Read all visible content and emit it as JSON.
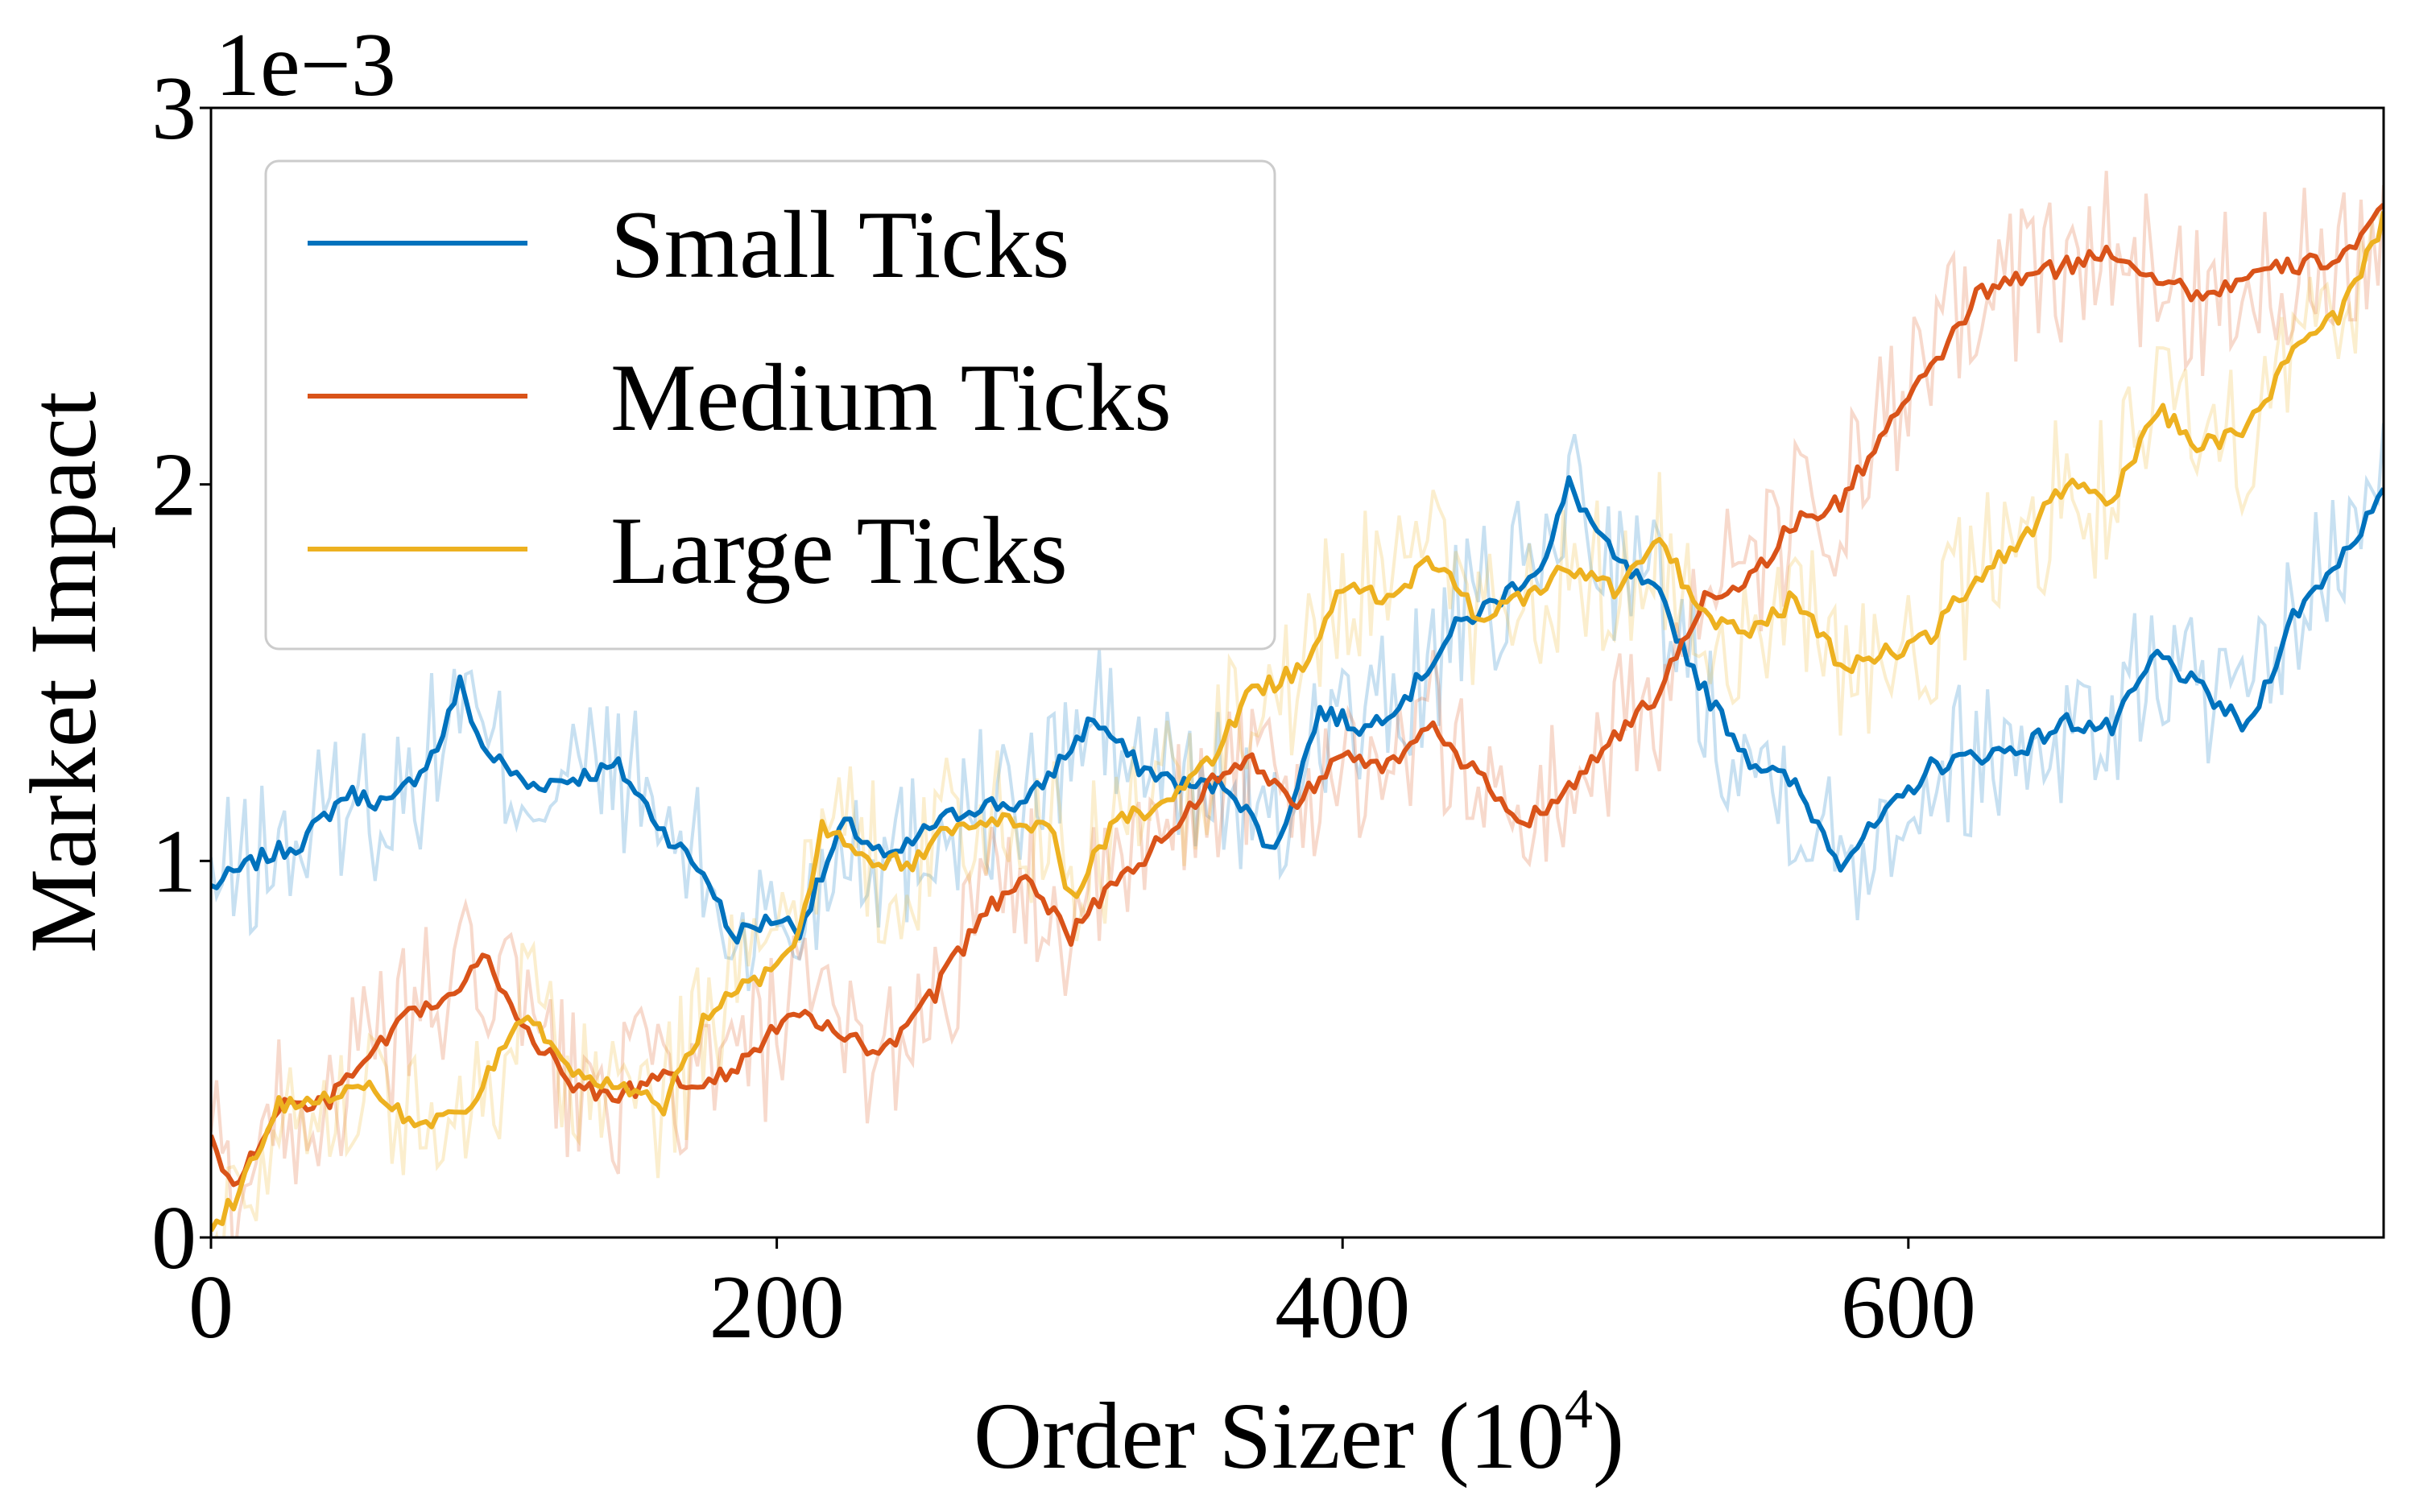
{
  "chart_data": {
    "type": "line",
    "title": "",
    "xlabel": "Order Sizer (10",
    "xlabel_superscript": "4",
    "xlabel_close": ")",
    "ylabel": "Market Impact",
    "y_offset_label": "1e−3",
    "xlim": [
      0,
      768
    ],
    "ylim": [
      0,
      3
    ],
    "xticks": [
      0,
      200,
      400,
      600
    ],
    "xtick_labels": [
      "0",
      "200",
      "400",
      "600"
    ],
    "yticks": [
      0,
      1,
      2,
      3
    ],
    "ytick_labels": [
      "0",
      "1",
      "2",
      "3"
    ],
    "grid": false,
    "legend_placement": "upper-left",
    "series": [
      {
        "name": "Small Ticks",
        "color": "#0072BD",
        "noise_amplitude": 0.22,
        "points": [
          [
            0,
            0.93
          ],
          [
            16,
            1.0
          ],
          [
            32,
            1.05
          ],
          [
            48,
            1.18
          ],
          [
            64,
            1.15
          ],
          [
            80,
            1.3
          ],
          [
            88,
            1.47
          ],
          [
            96,
            1.3
          ],
          [
            112,
            1.2
          ],
          [
            128,
            1.22
          ],
          [
            144,
            1.25
          ],
          [
            160,
            1.08
          ],
          [
            176,
            0.95
          ],
          [
            184,
            0.8
          ],
          [
            200,
            0.85
          ],
          [
            208,
            0.82
          ],
          [
            224,
            1.1
          ],
          [
            240,
            1.0
          ],
          [
            256,
            1.1
          ],
          [
            272,
            1.15
          ],
          [
            288,
            1.15
          ],
          [
            304,
            1.3
          ],
          [
            312,
            1.38
          ],
          [
            328,
            1.25
          ],
          [
            344,
            1.2
          ],
          [
            360,
            1.2
          ],
          [
            376,
            1.02
          ],
          [
            392,
            1.4
          ],
          [
            408,
            1.35
          ],
          [
            424,
            1.45
          ],
          [
            440,
            1.62
          ],
          [
            456,
            1.7
          ],
          [
            472,
            1.8
          ],
          [
            480,
            2.0
          ],
          [
            496,
            1.8
          ],
          [
            512,
            1.7
          ],
          [
            528,
            1.45
          ],
          [
            544,
            1.27
          ],
          [
            560,
            1.2
          ],
          [
            576,
            1.0
          ],
          [
            592,
            1.12
          ],
          [
            608,
            1.25
          ],
          [
            624,
            1.28
          ],
          [
            640,
            1.3
          ],
          [
            656,
            1.37
          ],
          [
            672,
            1.35
          ],
          [
            688,
            1.55
          ],
          [
            704,
            1.45
          ],
          [
            720,
            1.35
          ],
          [
            736,
            1.65
          ],
          [
            752,
            1.8
          ],
          [
            768,
            1.97
          ]
        ]
      },
      {
        "name": "Medium Ticks",
        "color": "#D95319",
        "noise_amplitude": 0.22,
        "points": [
          [
            0,
            0.27
          ],
          [
            8,
            0.12
          ],
          [
            24,
            0.35
          ],
          [
            40,
            0.35
          ],
          [
            56,
            0.48
          ],
          [
            72,
            0.6
          ],
          [
            88,
            0.65
          ],
          [
            96,
            0.75
          ],
          [
            112,
            0.55
          ],
          [
            128,
            0.4
          ],
          [
            144,
            0.38
          ],
          [
            160,
            0.42
          ],
          [
            176,
            0.4
          ],
          [
            192,
            0.5
          ],
          [
            208,
            0.6
          ],
          [
            224,
            0.52
          ],
          [
            240,
            0.5
          ],
          [
            256,
            0.65
          ],
          [
            272,
            0.85
          ],
          [
            288,
            0.97
          ],
          [
            304,
            0.8
          ],
          [
            320,
            0.95
          ],
          [
            336,
            1.05
          ],
          [
            352,
            1.2
          ],
          [
            368,
            1.27
          ],
          [
            384,
            1.15
          ],
          [
            400,
            1.3
          ],
          [
            416,
            1.25
          ],
          [
            432,
            1.35
          ],
          [
            448,
            1.22
          ],
          [
            464,
            1.1
          ],
          [
            480,
            1.2
          ],
          [
            496,
            1.32
          ],
          [
            512,
            1.45
          ],
          [
            528,
            1.7
          ],
          [
            544,
            1.75
          ],
          [
            560,
            1.9
          ],
          [
            576,
            1.95
          ],
          [
            592,
            2.15
          ],
          [
            608,
            2.3
          ],
          [
            624,
            2.5
          ],
          [
            640,
            2.55
          ],
          [
            656,
            2.58
          ],
          [
            672,
            2.62
          ],
          [
            688,
            2.55
          ],
          [
            704,
            2.5
          ],
          [
            720,
            2.55
          ],
          [
            736,
            2.58
          ],
          [
            752,
            2.6
          ],
          [
            768,
            2.72
          ]
        ]
      },
      {
        "name": "Large Ticks",
        "color": "#EDB120",
        "noise_amplitude": 0.22,
        "points": [
          [
            0,
            0.02
          ],
          [
            8,
            0.1
          ],
          [
            24,
            0.35
          ],
          [
            40,
            0.38
          ],
          [
            56,
            0.4
          ],
          [
            72,
            0.3
          ],
          [
            88,
            0.32
          ],
          [
            104,
            0.5
          ],
          [
            112,
            0.6
          ],
          [
            128,
            0.42
          ],
          [
            144,
            0.4
          ],
          [
            160,
            0.35
          ],
          [
            176,
            0.6
          ],
          [
            192,
            0.68
          ],
          [
            208,
            0.8
          ],
          [
            216,
            1.1
          ],
          [
            232,
            1.0
          ],
          [
            248,
            1.0
          ],
          [
            264,
            1.1
          ],
          [
            280,
            1.1
          ],
          [
            296,
            1.1
          ],
          [
            304,
            0.9
          ],
          [
            320,
            1.1
          ],
          [
            336,
            1.15
          ],
          [
            352,
            1.25
          ],
          [
            368,
            1.45
          ],
          [
            384,
            1.5
          ],
          [
            400,
            1.72
          ],
          [
            416,
            1.7
          ],
          [
            432,
            1.8
          ],
          [
            448,
            1.65
          ],
          [
            464,
            1.7
          ],
          [
            480,
            1.78
          ],
          [
            496,
            1.72
          ],
          [
            512,
            1.85
          ],
          [
            528,
            1.65
          ],
          [
            544,
            1.6
          ],
          [
            560,
            1.7
          ],
          [
            576,
            1.52
          ],
          [
            592,
            1.55
          ],
          [
            608,
            1.6
          ],
          [
            624,
            1.75
          ],
          [
            640,
            1.85
          ],
          [
            656,
            2.0
          ],
          [
            672,
            1.95
          ],
          [
            688,
            2.2
          ],
          [
            704,
            2.1
          ],
          [
            720,
            2.15
          ],
          [
            736,
            2.35
          ],
          [
            752,
            2.45
          ],
          [
            768,
            2.7
          ]
        ]
      }
    ]
  }
}
